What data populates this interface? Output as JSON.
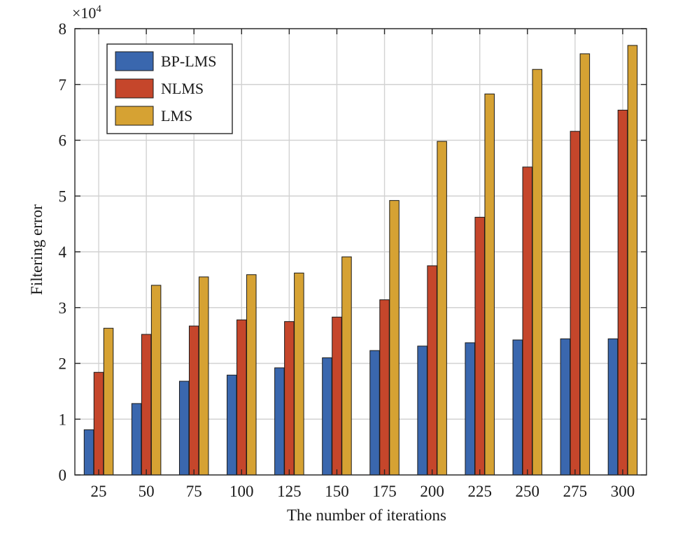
{
  "chart_data": {
    "type": "bar",
    "title": "",
    "xlabel": "The number of iterations",
    "ylabel": "Filtering error",
    "y_multiplier": {
      "base": "×10",
      "exponent": "4"
    },
    "categories": [
      "25",
      "50",
      "75",
      "100",
      "125",
      "150",
      "175",
      "200",
      "225",
      "250",
      "275",
      "300"
    ],
    "yticks": [
      "0",
      "1",
      "2",
      "3",
      "4",
      "5",
      "6",
      "7",
      "8"
    ],
    "ylim": [
      0,
      8
    ],
    "grid": true,
    "legend_position": "top-left",
    "series": [
      {
        "name": "BP-LMS",
        "color": "#3a67ae",
        "values": [
          0.81,
          1.28,
          1.68,
          1.79,
          1.92,
          2.1,
          2.23,
          2.31,
          2.37,
          2.42,
          2.44,
          2.44
        ]
      },
      {
        "name": "NLMS",
        "color": "#c5462b",
        "values": [
          1.84,
          2.52,
          2.67,
          2.78,
          2.75,
          2.83,
          3.14,
          3.75,
          4.62,
          5.52,
          6.16,
          6.54
        ]
      },
      {
        "name": "LMS",
        "color": "#d6a233",
        "values": [
          2.63,
          3.4,
          3.55,
          3.59,
          3.62,
          3.91,
          4.92,
          5.98,
          6.83,
          7.27,
          7.55,
          7.7
        ]
      }
    ]
  }
}
